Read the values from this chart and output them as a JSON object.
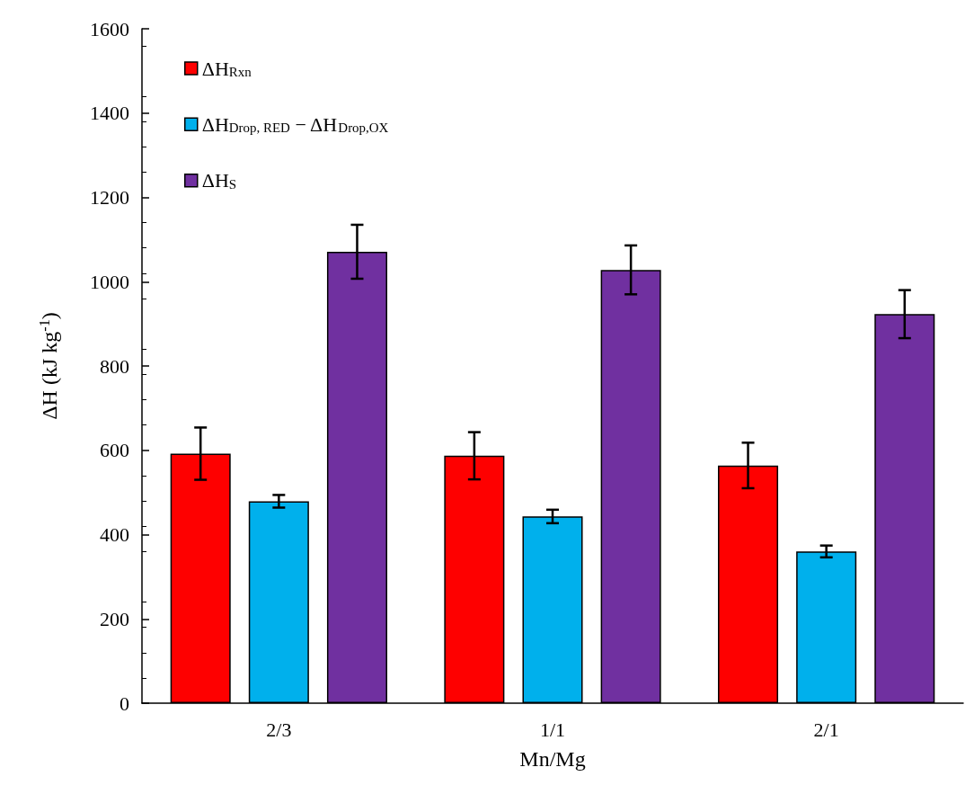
{
  "chart_data": {
    "type": "bar",
    "xlabel": "Mn/Mg",
    "ylabel": "ΔH (kJ kg$^{-1}$)",
    "categories": [
      "2/3",
      "1/1",
      "2/1"
    ],
    "series": [
      {
        "name": "ΔH$_{Rxn}$",
        "color": "#fe0000",
        "values": [
          592,
          587,
          564
        ],
        "errors": [
          62,
          56,
          54
        ]
      },
      {
        "name": "ΔH$_{Drop, RED}$ − ΔH$_{Drop,OX}$",
        "color": "#00b0ec",
        "values": [
          479,
          443,
          360
        ],
        "errors": [
          15,
          16,
          14
        ]
      },
      {
        "name": "ΔH$_{S}$",
        "color": "#7030a0",
        "values": [
          1071,
          1028,
          923
        ],
        "errors": [
          64,
          58,
          57
        ]
      }
    ],
    "ylim": [
      0,
      1600
    ],
    "yticks": [
      0,
      200,
      400,
      600,
      800,
      1000,
      1200,
      1400,
      1600
    ],
    "legend": "top left"
  }
}
